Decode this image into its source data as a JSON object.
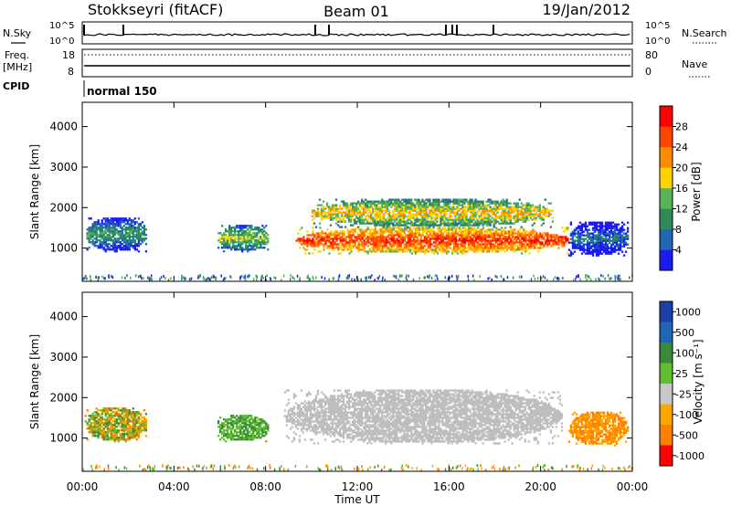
{
  "header": {
    "station": "Stokkseyri (fitACF)",
    "beam": "Beam 01",
    "date": "19/Jan/2012"
  },
  "side_labels": {
    "nsky": "N.Sky",
    "freq_line1": "Freq.",
    "freq_line2": "[MHz]",
    "cpid": "CPID",
    "nsearch": "N.Search",
    "nave": "Nave",
    "cpid_value": "normal 150"
  },
  "small_ticks": {
    "noise_left": [
      "10^5",
      "10^0"
    ],
    "noise_right": [
      "10^5",
      "10^0"
    ],
    "freq_left": [
      "18",
      "8"
    ],
    "freq_right": [
      "80",
      "0"
    ]
  },
  "colors": {
    "power_scale": [
      "#1b1bf0",
      "#1f66b4",
      "#2e8b57",
      "#57b357",
      "#ffd200",
      "#ff8c00",
      "#ff4500",
      "#ff0000"
    ],
    "velocity_scale": [
      "#1f3fa8",
      "#1f66b4",
      "#3a8a3a",
      "#5fbf2f",
      "#c8c8c8",
      "#ffa500",
      "#ff7f00",
      "#ff0000"
    ],
    "ground_scatter": "#bebebe"
  },
  "chart_data": [
    {
      "type": "heatmap",
      "name": "power",
      "xlabel": "Time UT",
      "ylabel": "Slant Range [km]",
      "x_ticks": [
        "00:00",
        "04:00",
        "08:00",
        "12:00",
        "16:00",
        "20:00",
        "00:00"
      ],
      "x_range_hours": [
        0,
        24
      ],
      "y_range_km": [
        180,
        4600
      ],
      "y_ticks": [
        1000,
        2000,
        3000,
        4000
      ],
      "colorbar": {
        "label": "Power [dB]",
        "ticks": [
          4,
          8,
          12,
          16,
          20,
          24,
          28
        ],
        "range": [
          0,
          32
        ]
      },
      "regions": [
        {
          "t0": 0.1,
          "t1": 2.8,
          "r0": 900,
          "r1": 1750,
          "level": 3
        },
        {
          "t0": 5.9,
          "t1": 8.1,
          "r0": 900,
          "r1": 1550,
          "level": 4
        },
        {
          "t0": 9.3,
          "t1": 21.2,
          "r0": 850,
          "r1": 1500,
          "level": 7
        },
        {
          "t0": 10.0,
          "t1": 20.5,
          "r0": 1500,
          "r1": 2200,
          "level": 5
        },
        {
          "t0": 21.2,
          "t1": 23.8,
          "r0": 800,
          "r1": 1650,
          "level": 2
        }
      ]
    },
    {
      "type": "heatmap",
      "name": "velocity",
      "xlabel": "Time UT",
      "ylabel": "Slant Range [km]",
      "x_ticks": [
        "00:00",
        "04:00",
        "08:00",
        "12:00",
        "16:00",
        "20:00",
        "00:00"
      ],
      "x_range_hours": [
        0,
        24
      ],
      "y_range_km": [
        180,
        4600
      ],
      "y_ticks": [
        1000,
        2000,
        3000,
        4000
      ],
      "colorbar": {
        "label": "Velocity [m s⁻¹]",
        "ticks": [
          "1000",
          "500",
          "100",
          "25",
          "-25",
          "-100",
          "-500",
          "-1000"
        ]
      },
      "regions": [
        {
          "t0": 0.1,
          "t1": 2.8,
          "r0": 900,
          "r1": 1750,
          "class": "mixed"
        },
        {
          "t0": 5.9,
          "t1": 8.1,
          "r0": 900,
          "r1": 1550,
          "class": "positive"
        },
        {
          "t0": 8.8,
          "t1": 20.9,
          "r0": 850,
          "r1": 2200,
          "class": "ground"
        },
        {
          "t0": 21.2,
          "t1": 23.8,
          "r0": 800,
          "r1": 1650,
          "class": "negative"
        }
      ]
    }
  ]
}
